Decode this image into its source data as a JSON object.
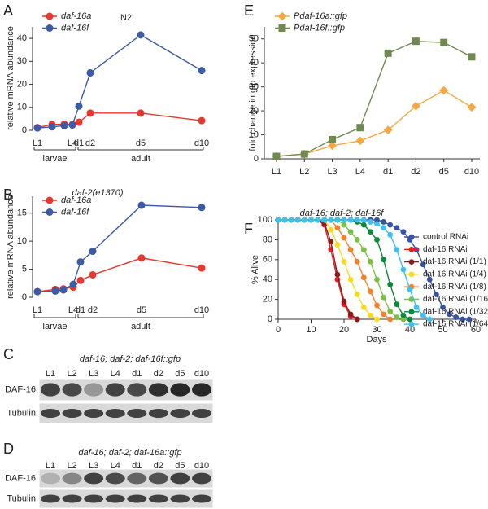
{
  "chart_data": [
    {
      "type": "line",
      "panel": "A",
      "title": "N2",
      "ylabel": "relative mRNA abundance",
      "categories": [
        "L1",
        null,
        null,
        "L4",
        "d1",
        "d2",
        "d5",
        "d10"
      ],
      "annotations": [
        "larvae",
        "adult"
      ],
      "series": [
        {
          "name": "daf-16a",
          "color": "#e8372c",
          "marker": "circle",
          "values": [
            1.2,
            2.5,
            2.7,
            2.5,
            3.5,
            7.5,
            7.5,
            4.2
          ]
        },
        {
          "name": "daf-16f",
          "color": "#3b5aa7",
          "marker": "circle",
          "values": [
            1,
            1.5,
            2,
            2.3,
            10.5,
            25,
            41.5,
            26
          ]
        }
      ],
      "ylim": [
        0,
        45
      ],
      "yticks": [
        0,
        10,
        20,
        30,
        40
      ],
      "legend": "top-left"
    },
    {
      "type": "line",
      "panel": "B",
      "title": "daf-2(e1370)",
      "ylabel": "relative mRNA abundance",
      "categories": [
        "L1",
        null,
        null,
        "L4",
        "d1",
        "d2",
        "d5",
        "d10"
      ],
      "annotations": [
        "larvae",
        "adult"
      ],
      "series": [
        {
          "name": "daf-16a",
          "color": "#e8372c",
          "marker": "circle",
          "values": [
            1,
            1.4,
            1.5,
            1.8,
            3,
            4,
            7,
            5.2
          ]
        },
        {
          "name": "daf-16f",
          "color": "#3b5aa7",
          "marker": "circle",
          "values": [
            1,
            1.1,
            1.3,
            2.3,
            6.3,
            8.2,
            16.4,
            16
          ]
        }
      ],
      "ylim": [
        0,
        18
      ],
      "yticks": [
        0,
        5,
        10,
        15
      ],
      "legend": "top-left"
    },
    {
      "type": "line",
      "panel": "E",
      "ylabel": "fold change in gfp expression",
      "categories": [
        "L1",
        "L2",
        "L3",
        "L4",
        "d1",
        "d2",
        "d5",
        "d10"
      ],
      "series": [
        {
          "name": "Pdaf-16a::gfp",
          "color": "#f5a742",
          "marker": "diamond",
          "values": [
            1,
            2,
            5.5,
            7.5,
            12,
            22,
            28.5,
            21.5
          ]
        },
        {
          "name": "Pdaf-16f::gfp",
          "color": "#6f8a51",
          "marker": "square",
          "values": [
            1,
            2,
            8,
            13,
            44,
            49,
            48.5,
            42.5
          ]
        }
      ],
      "ylim": [
        0,
        55
      ],
      "yticks": [
        0,
        10,
        20,
        30,
        40,
        50
      ],
      "legend": "top-left"
    },
    {
      "type": "scatter-line",
      "panel": "F",
      "title": "daf-16; daf-2; daf-16f",
      "xlabel": "Days",
      "ylabel": "% Alive",
      "x": [
        0,
        2,
        4,
        6,
        8,
        10,
        12,
        14,
        16,
        18,
        20,
        22,
        24,
        26,
        28,
        30,
        32,
        34,
        36,
        38,
        40,
        42,
        44,
        46,
        48,
        50,
        52,
        54,
        56,
        58
      ],
      "series": [
        {
          "name": "control RNAi",
          "color": "#3953a4",
          "marker": "circle",
          "values": [
            100,
            100,
            100,
            100,
            100,
            100,
            100,
            100,
            100,
            100,
            100,
            100,
            100,
            100,
            100,
            100,
            98,
            95,
            92,
            88,
            80,
            70,
            55,
            40,
            25,
            12,
            5,
            2,
            0,
            0
          ]
        },
        {
          "name": "daf-16 RNAi",
          "color": "#e41f26",
          "marker": "circle",
          "values": [
            100,
            100,
            100,
            100,
            100,
            100,
            100,
            95,
            70,
            40,
            15,
            3,
            0,
            null,
            null,
            null,
            null,
            null,
            null,
            null,
            null,
            null,
            null,
            null,
            null,
            null,
            null,
            null,
            null,
            null
          ]
        },
        {
          "name": "daf-16 RNAi (1/1)",
          "color": "#8b1a1a",
          "marker": "circle",
          "values": [
            100,
            100,
            100,
            100,
            100,
            100,
            100,
            97,
            78,
            45,
            18,
            5,
            0,
            null,
            null,
            null,
            null,
            null,
            null,
            null,
            null,
            null,
            null,
            null,
            null,
            null,
            null,
            null,
            null,
            null
          ]
        },
        {
          "name": "daf-16 RNAi (1/4)",
          "color": "#f7dc1e",
          "marker": "circle",
          "values": [
            100,
            100,
            100,
            100,
            100,
            100,
            100,
            100,
            90,
            75,
            58,
            40,
            25,
            12,
            4,
            0,
            null,
            null,
            null,
            null,
            null,
            null,
            null,
            null,
            null,
            null,
            null,
            null,
            null,
            null
          ]
        },
        {
          "name": "daf-16 RNAi (1/8)",
          "color": "#f58228",
          "marker": "circle",
          "values": [
            100,
            100,
            100,
            100,
            100,
            100,
            100,
            100,
            100,
            92,
            82,
            70,
            58,
            42,
            28,
            14,
            5,
            0,
            null,
            null,
            null,
            null,
            null,
            null,
            null,
            null,
            null,
            null,
            null,
            null
          ]
        },
        {
          "name": "daf-16 RNAi (1/16)",
          "color": "#7ac143",
          "marker": "circle",
          "values": [
            100,
            100,
            100,
            100,
            100,
            100,
            100,
            100,
            100,
            100,
            95,
            88,
            80,
            70,
            58,
            40,
            22,
            8,
            2,
            0,
            null,
            null,
            null,
            null,
            null,
            null,
            null,
            null,
            null,
            null
          ]
        },
        {
          "name": "daf-16 RNAi (1/32)",
          "color": "#0a8a3a",
          "marker": "circle",
          "values": [
            100,
            100,
            100,
            100,
            100,
            100,
            100,
            100,
            100,
            100,
            100,
            100,
            98,
            95,
            88,
            80,
            60,
            35,
            15,
            4,
            0,
            null,
            null,
            null,
            null,
            null,
            null,
            null,
            null,
            null
          ]
        },
        {
          "name": "daf-16 RNAi (1/64)",
          "color": "#3ec1ee",
          "marker": "circle",
          "values": [
            100,
            100,
            100,
            100,
            100,
            100,
            100,
            100,
            100,
            100,
            100,
            100,
            100,
            100,
            98,
            96,
            92,
            85,
            70,
            50,
            30,
            12,
            4,
            0,
            null,
            null,
            null,
            null,
            null,
            null
          ]
        }
      ],
      "xlim": [
        0,
        60
      ],
      "xticks": [
        0,
        10,
        20,
        30,
        40,
        50,
        60
      ],
      "ylim": [
        0,
        100
      ],
      "yticks": [
        0,
        20,
        40,
        60,
        80,
        100
      ],
      "legend": "right"
    }
  ],
  "blots": [
    {
      "panel": "C",
      "title": "daf-16; daf-2; daf-16f::gfp",
      "lanes": [
        "L1",
        "L2",
        "L3",
        "L4",
        "d1",
        "d2",
        "d5",
        "d10"
      ],
      "rows": [
        "DAF-16",
        "Tubulin"
      ]
    },
    {
      "panel": "D",
      "title": "daf-16; daf-2; daf-16a::gfp",
      "lanes": [
        "L1",
        "L2",
        "L3",
        "L4",
        "d1",
        "d2",
        "d5",
        "d10"
      ],
      "rows": [
        "DAF-16",
        "Tubulin"
      ]
    }
  ]
}
